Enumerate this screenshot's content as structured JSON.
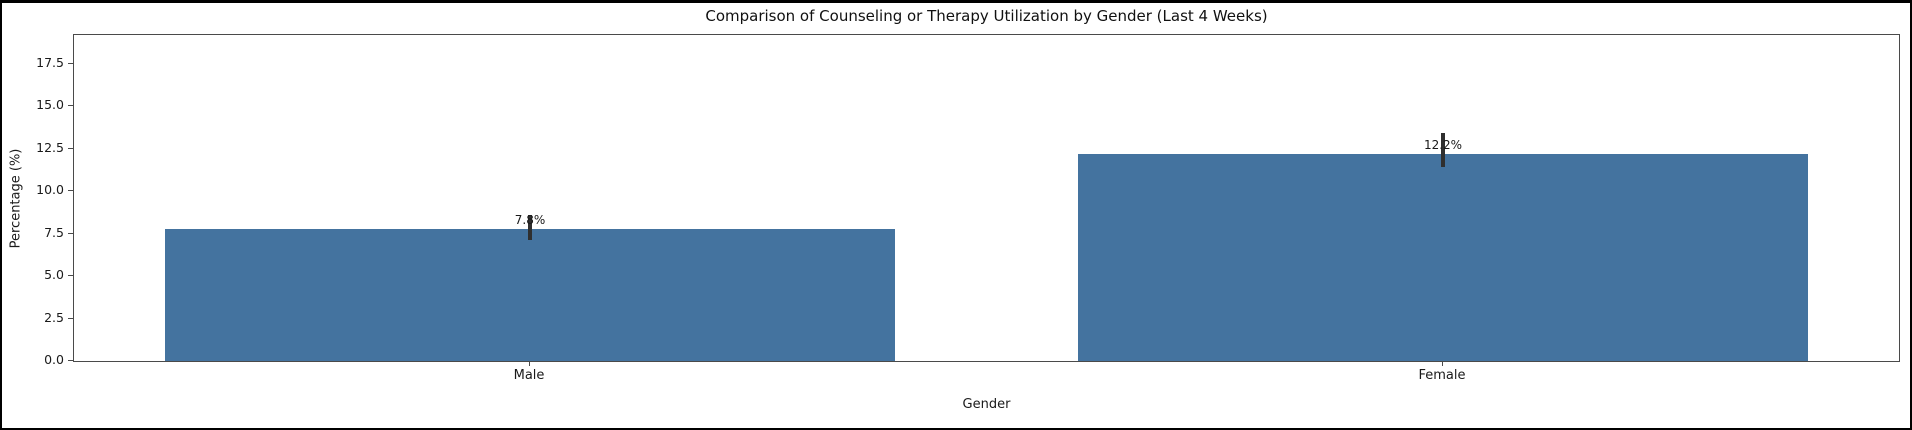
{
  "chart_data": {
    "type": "bar",
    "title": "Comparison of Counseling or Therapy Utilization by Gender (Last 4 Weeks)",
    "xlabel": "Gender",
    "ylabel": "Percentage (%)",
    "categories": [
      "Male",
      "Female"
    ],
    "values": [
      7.8,
      12.2
    ],
    "bar_labels": [
      "7.8%",
      "12.2%"
    ],
    "error_low": [
      7.1,
      11.4
    ],
    "error_high": [
      8.6,
      13.4
    ],
    "ylim": [
      0,
      19.2
    ],
    "yticks": [
      0,
      2.5,
      5,
      7.5,
      10,
      12.5,
      15,
      17.5
    ],
    "ytick_labels": [
      "0.0",
      "2.5",
      "5.0",
      "7.5",
      "10.0",
      "12.5",
      "15.0",
      "17.5"
    ],
    "bar_width_fraction": 0.8,
    "bar_color": "#44739f",
    "error_color": "#2f2f2f",
    "grid": false,
    "legend": "none"
  }
}
